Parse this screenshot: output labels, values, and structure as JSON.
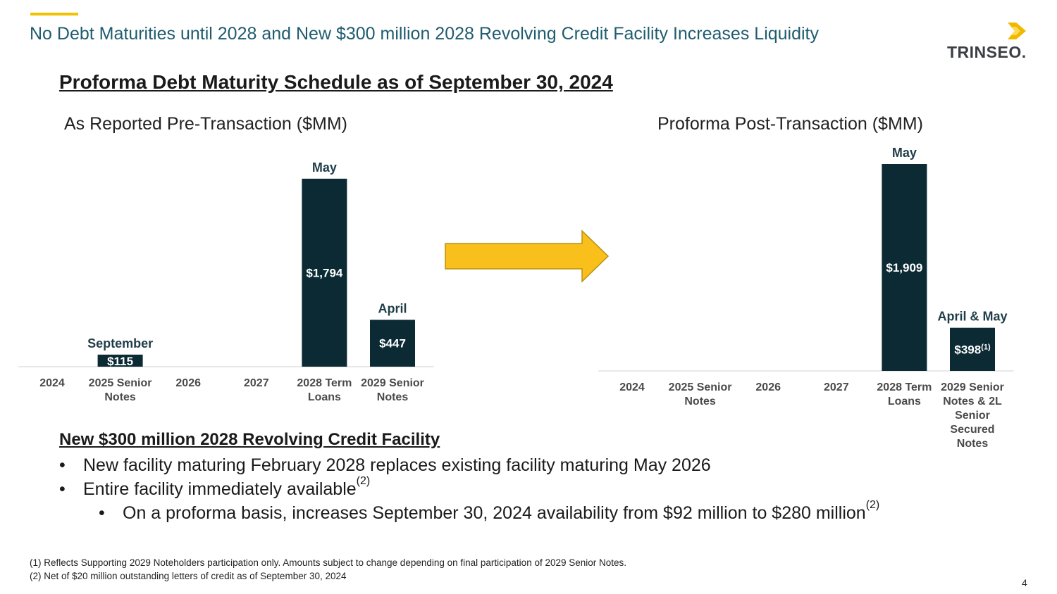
{
  "header": {
    "title": "No Debt Maturities until 2028 and New $300 million 2028 Revolving Credit Facility Increases Liquidity",
    "logo_text": "TRINSEO.",
    "accent_color": "#f2c200",
    "title_color": "#1f5c6e"
  },
  "section_heading": "Proforma Debt Maturity Schedule as of September 30, 2024",
  "chart_data": [
    {
      "type": "bar",
      "title": "As Reported Pre-Transaction ($MM)",
      "categories": [
        "2024",
        "2025 Senior Notes",
        "2026",
        "2027",
        "2028 Term Loans",
        "2029 Senior Notes"
      ],
      "category_lines": [
        [
          "2024"
        ],
        [
          "2025 Senior",
          "Notes"
        ],
        [
          "2026"
        ],
        [
          "2027"
        ],
        [
          "2028 Term",
          "Loans"
        ],
        [
          "2029 Senior",
          "Notes"
        ]
      ],
      "values": [
        0,
        115,
        0,
        0,
        1794,
        447
      ],
      "value_labels": [
        "",
        "$115",
        "",
        "",
        "$1,794",
        "$447"
      ],
      "month_labels": [
        "",
        "September",
        "",
        "",
        "May",
        "April"
      ],
      "ylim": [
        0,
        1800
      ],
      "bar_color": "#0b2a34"
    },
    {
      "type": "bar",
      "title": "Proforma Post-Transaction ($MM)",
      "categories": [
        "2024",
        "2025 Senior Notes",
        "2026",
        "2027",
        "2028 Term Loans",
        "2029 Senior Notes & 2L Senior Secured Notes"
      ],
      "category_lines": [
        [
          "2024"
        ],
        [
          "2025 Senior",
          "Notes"
        ],
        [
          "2026"
        ],
        [
          "2027"
        ],
        [
          "2028 Term",
          "Loans"
        ],
        [
          "2029 Senior",
          "Notes & 2L",
          "Senior",
          "Secured",
          "Notes"
        ]
      ],
      "values": [
        0,
        0,
        0,
        0,
        1909,
        398
      ],
      "value_labels": [
        "",
        "",
        "",
        "",
        "$1,909",
        "$398"
      ],
      "value_superscripts": [
        "",
        "",
        "",
        "",
        "",
        "(1)"
      ],
      "month_labels": [
        "",
        "",
        "",
        "",
        "May",
        "April & May"
      ],
      "ylim": [
        0,
        1909
      ],
      "bar_color": "#0b2a34"
    }
  ],
  "transition_arrow": {
    "icon": "right-arrow-icon",
    "color": "#f9c01c"
  },
  "rcf": {
    "heading": "New $300 million 2028 Revolving Credit Facility",
    "bullets": [
      {
        "text": "New facility maturing February 2028 replaces existing facility maturing May 2026",
        "sup": ""
      },
      {
        "text": "Entire facility immediately available",
        "sup": "(2)"
      }
    ],
    "sub_bullets": [
      {
        "text": "On a proforma basis, increases September 30, 2024 availability from $92 million to $280 million",
        "sup": "(2)"
      }
    ],
    "bullet_symbol": "•"
  },
  "footnotes": [
    "(1) Reflects Supporting 2029 Noteholders participation only. Amounts subject to change depending on final participation of 2029 Senior Notes.",
    "(2) Net of $20 million outstanding letters of credit as of September 30, 2024"
  ],
  "page_number": "4"
}
